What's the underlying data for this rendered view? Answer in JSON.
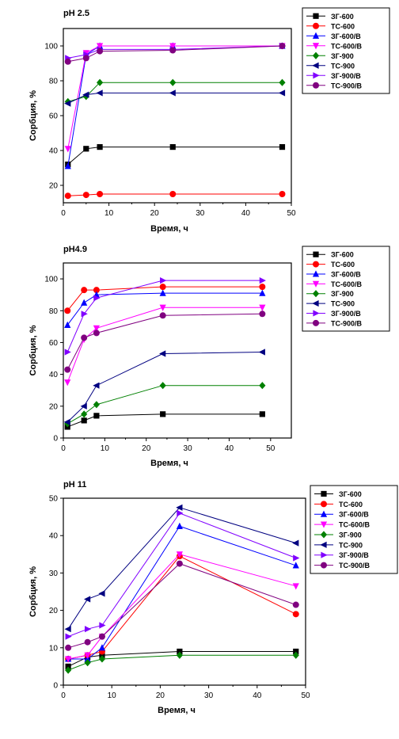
{
  "chart_data": [
    {
      "type": "line",
      "title": "pH 2.5",
      "xlabel": "Время, ч",
      "ylabel": "Сорбция, %",
      "xlim": [
        0,
        50
      ],
      "ylim": [
        10,
        110
      ],
      "xticks": [
        "0",
        "10",
        "20",
        "30",
        "40",
        "50"
      ],
      "yticks": [
        "20",
        "40",
        "60",
        "80",
        "100"
      ],
      "x": [
        1,
        5,
        8,
        24,
        48
      ],
      "legend_position": "top-right",
      "series": [
        {
          "name": "ЗГ-600",
          "color": "#000000",
          "marker": "square",
          "values": [
            32,
            41,
            42,
            42,
            42
          ]
        },
        {
          "name": "ТС-600",
          "color": "#ff0000",
          "marker": "circle",
          "values": [
            14,
            14.5,
            15,
            15,
            15
          ]
        },
        {
          "name": "ЗГ-600/B",
          "color": "#0000ff",
          "marker": "triangle-up",
          "values": [
            31,
            95,
            100,
            100,
            100
          ]
        },
        {
          "name": "ТС-600/B",
          "color": "#ff00ff",
          "marker": "triangle-down",
          "values": [
            41,
            96,
            100,
            100,
            100
          ]
        },
        {
          "name": "ЗГ-900",
          "color": "#008000",
          "marker": "diamond",
          "values": [
            68,
            71,
            79,
            79,
            79
          ]
        },
        {
          "name": "ТС-900",
          "color": "#000080",
          "marker": "triangle-left",
          "values": [
            67,
            72,
            73,
            73,
            73
          ]
        },
        {
          "name": "ЗГ-900/B",
          "color": "#8000ff",
          "marker": "triangle-right",
          "values": [
            93,
            95,
            98,
            98,
            100
          ]
        },
        {
          "name": "ТС-900/B",
          "color": "#800080",
          "marker": "circle",
          "values": [
            91,
            93,
            97,
            97.5,
            100
          ]
        }
      ]
    },
    {
      "type": "line",
      "title": "pH4.9",
      "xlabel": "Время, ч",
      "ylabel": "Сорбция, %",
      "xlim": [
        0,
        55
      ],
      "ylim": [
        0,
        110
      ],
      "xticks": [
        "0",
        "10",
        "20",
        "30",
        "40",
        "50"
      ],
      "yticks": [
        "0",
        "20",
        "40",
        "60",
        "80",
        "100"
      ],
      "x": [
        1,
        5,
        8,
        24,
        48
      ],
      "legend_position": "top-right",
      "series": [
        {
          "name": "ЗГ-600",
          "color": "#000000",
          "marker": "square",
          "values": [
            7,
            11,
            14,
            15,
            15
          ]
        },
        {
          "name": "ТС-600",
          "color": "#ff0000",
          "marker": "circle",
          "values": [
            80,
            93,
            93,
            95,
            95
          ]
        },
        {
          "name": "ЗГ-600/B",
          "color": "#0000ff",
          "marker": "triangle-up",
          "values": [
            71,
            85,
            90,
            91,
            91
          ]
        },
        {
          "name": "ТС-600/B",
          "color": "#ff00ff",
          "marker": "triangle-down",
          "values": [
            35,
            62,
            69,
            82,
            82
          ]
        },
        {
          "name": "ЗГ-900",
          "color": "#008000",
          "marker": "diamond",
          "values": [
            9,
            15,
            21,
            33,
            33
          ]
        },
        {
          "name": "ТС-900",
          "color": "#000080",
          "marker": "triangle-left",
          "values": [
            10,
            20,
            33,
            53,
            54
          ]
        },
        {
          "name": "ЗГ-900/B",
          "color": "#8000ff",
          "marker": "triangle-right",
          "values": [
            54,
            78,
            88,
            99,
            99
          ]
        },
        {
          "name": "ТС-900/B",
          "color": "#800080",
          "marker": "circle",
          "values": [
            43,
            63,
            66,
            77,
            78
          ]
        }
      ]
    },
    {
      "type": "line",
      "title": "pH 11",
      "xlabel": "Время, ч",
      "ylabel": "Сорбция, %",
      "xlim": [
        0,
        50
      ],
      "ylim": [
        0,
        50
      ],
      "xticks": [
        "0",
        "10",
        "20",
        "30",
        "40",
        "50"
      ],
      "yticks": [
        "0",
        "10",
        "20",
        "30",
        "40",
        "50"
      ],
      "x": [
        1,
        5,
        8,
        24,
        48
      ],
      "legend_position": "top-right",
      "series": [
        {
          "name": "ЗГ-600",
          "color": "#000000",
          "marker": "square",
          "values": [
            5,
            7.5,
            8,
            9,
            9
          ]
        },
        {
          "name": "ТС-600",
          "color": "#ff0000",
          "marker": "circle",
          "values": [
            7,
            8,
            9,
            34.5,
            19
          ]
        },
        {
          "name": "ЗГ-600/B",
          "color": "#0000ff",
          "marker": "triangle-up",
          "values": [
            7,
            7,
            10,
            42.5,
            32
          ]
        },
        {
          "name": "ТС-600/B",
          "color": "#ff00ff",
          "marker": "triangle-down",
          "values": [
            7,
            8,
            13,
            35,
            26.5
          ]
        },
        {
          "name": "ЗГ-900",
          "color": "#008000",
          "marker": "diamond",
          "values": [
            4,
            6,
            7,
            8,
            8
          ]
        },
        {
          "name": "ТС-900",
          "color": "#000080",
          "marker": "triangle-left",
          "values": [
            15,
            23,
            24.5,
            47.5,
            38
          ]
        },
        {
          "name": "ЗГ-900/B",
          "color": "#8000ff",
          "marker": "triangle-right",
          "values": [
            13,
            15,
            16,
            46,
            34
          ]
        },
        {
          "name": "ТС-900/B",
          "color": "#800080",
          "marker": "circle",
          "values": [
            10,
            11.5,
            13,
            32.5,
            21.5
          ]
        }
      ]
    }
  ]
}
